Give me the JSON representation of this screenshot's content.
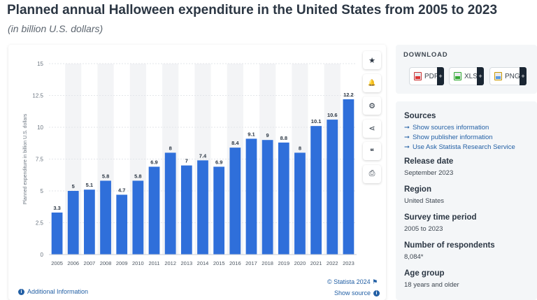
{
  "header": {
    "title": "Planned annual Halloween expenditure in the United States from 2005 to 2023",
    "subtitle": "(in billion U.S. dollars)"
  },
  "chart_data": {
    "type": "bar",
    "categories": [
      "2005",
      "2006",
      "2007",
      "2008",
      "2009",
      "2010",
      "2011",
      "2012",
      "2013",
      "2014",
      "2015",
      "2016",
      "2017",
      "2018",
      "2019",
      "2020",
      "2021",
      "2022",
      "2023"
    ],
    "values": [
      3.3,
      5,
      5.1,
      5.8,
      4.7,
      5.8,
      6.9,
      8,
      7,
      7.4,
      6.9,
      8.4,
      9.1,
      9,
      8.8,
      8,
      10.1,
      10.6,
      12.2
    ],
    "value_labels": [
      "3.3",
      "5",
      "5.1",
      "5.8",
      "4.7",
      "5.8",
      "6.9",
      "8",
      "7",
      "7.4",
      "6.9",
      "8.4",
      "9.1",
      "9",
      "8.8",
      "8",
      "10.1",
      "10.6",
      "12.2"
    ],
    "yticks": [
      0,
      2.5,
      5,
      7.5,
      10,
      12.5,
      15
    ],
    "ytick_labels": [
      "0",
      "2.5",
      "5",
      "7.5",
      "10",
      "12.5",
      "15"
    ],
    "ylim": [
      0,
      15
    ],
    "ylabel": "Planned expenditure in billion U.S. dollars",
    "xlabel": "",
    "bar_color": "#2f6fda",
    "band_color": "#f3f4f6"
  },
  "footer": {
    "additional_info": "Additional Information",
    "credit": "© Statista 2024",
    "show_source": "Show source"
  },
  "tools": [
    {
      "icon": "star-icon",
      "glyph": "★"
    },
    {
      "icon": "bell-icon",
      "glyph": "🔔"
    },
    {
      "icon": "gear-icon",
      "glyph": "⚙"
    },
    {
      "icon": "share-icon",
      "glyph": "⋖"
    },
    {
      "icon": "quote-icon",
      "glyph": "❝"
    },
    {
      "icon": "print-icon",
      "glyph": "⎙"
    }
  ],
  "download": {
    "title": "DOWNLOAD",
    "pdf": "PDF",
    "xls": "XLS",
    "png": "PNG",
    "plus": "+"
  },
  "sources": {
    "heading": "Sources",
    "links": [
      "Show sources information",
      "Show publisher information",
      "Use Ask Statista Research Service"
    ]
  },
  "release": {
    "heading": "Release date",
    "value": "September 2023"
  },
  "region": {
    "heading": "Region",
    "value": "United States"
  },
  "survey": {
    "heading": "Survey time period",
    "value": "2005 to 2023"
  },
  "respondents": {
    "heading": "Number of respondents",
    "value": "8,084*"
  },
  "age": {
    "heading": "Age group",
    "value": "18 years and older"
  }
}
